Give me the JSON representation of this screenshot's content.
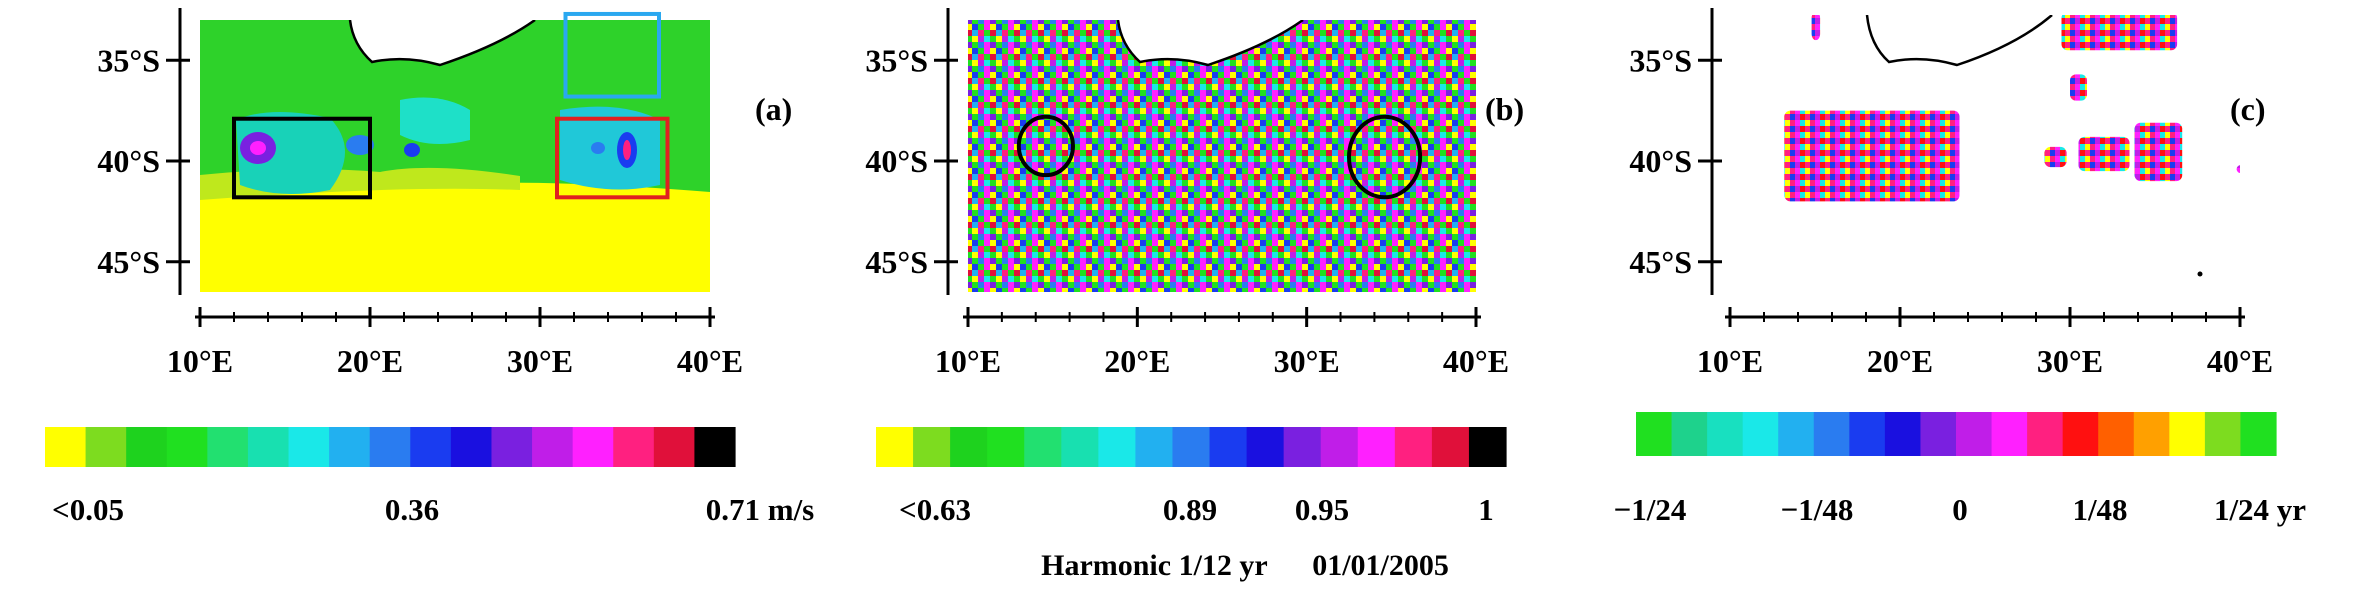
{
  "chart_data": [
    {
      "type": "heatmap",
      "panel_label": "(a)",
      "x_ticks": [
        "10°E",
        "20°E",
        "30°E",
        "40°E"
      ],
      "y_ticks": [
        "35°S",
        "40°S",
        "45°S"
      ],
      "xlim": [
        10,
        40
      ],
      "ylim": [
        -46.5,
        -33
      ],
      "boxes": [
        {
          "name": "black",
          "color": "#000000",
          "lon": [
            12,
            20
          ],
          "lat": [
            -37.9,
            -41.8
          ]
        },
        {
          "name": "blue",
          "color": "#2aa8f0",
          "lon": [
            31.5,
            37
          ],
          "lat": [
            -32.7,
            -36.8
          ]
        },
        {
          "name": "red",
          "color": "#e02020",
          "lon": [
            31,
            37.5
          ],
          "lat": [
            -37.9,
            -41.8
          ]
        }
      ],
      "colorbar": {
        "colors": [
          "#ffff00",
          "#7ddc1f",
          "#1ed21e",
          "#20e020",
          "#22e070",
          "#18e0b0",
          "#1ae8e8",
          "#22b0f0",
          "#2a7cf0",
          "#1a3cf0",
          "#1a10e0",
          "#7a20e0",
          "#c01ee8",
          "#ff20ff",
          "#ff2080",
          "#e0103a",
          "#000000"
        ],
        "tick_labels": [
          "<0.05",
          "0.36",
          "0.71 m/s"
        ]
      }
    },
    {
      "type": "heatmap",
      "panel_label": "(b)",
      "x_ticks": [
        "10°E",
        "20°E",
        "30°E",
        "40°E"
      ],
      "y_ticks": [
        "35°S",
        "40°S",
        "45°S"
      ],
      "xlim": [
        10,
        40
      ],
      "ylim": [
        -46.5,
        -33
      ],
      "circles": [
        {
          "lon": [
            13,
            16.2
          ],
          "lat": [
            -37.8,
            -40.7
          ]
        },
        {
          "lon": [
            32.5,
            36.7
          ],
          "lat": [
            -37.8,
            -41.8
          ]
        }
      ],
      "colorbar": {
        "colors": [
          "#ffff00",
          "#7ddc1f",
          "#1ed21e",
          "#20e020",
          "#22e070",
          "#18e0b0",
          "#1ae8e8",
          "#22b0f0",
          "#2a7cf0",
          "#1a3cf0",
          "#1a10e0",
          "#7a20e0",
          "#c01ee8",
          "#ff20ff",
          "#ff2080",
          "#e0103a",
          "#000000"
        ],
        "tick_labels": [
          "<0.63",
          "0.89",
          "0.95",
          "1"
        ]
      },
      "caption": "Harmonic 1/12 yr      01/01/2005"
    },
    {
      "type": "scatter",
      "panel_label": "(c)",
      "x_ticks": [
        "10°E",
        "20°E",
        "30°E",
        "40°E"
      ],
      "y_ticks": [
        "35°S",
        "40°S",
        "45°S"
      ],
      "xlim": [
        10,
        40
      ],
      "ylim": [
        -46.5,
        -33
      ],
      "clusters": [
        {
          "lon": [
            13.2,
            23.5
          ],
          "lat": [
            -37.5,
            -42.0
          ]
        },
        {
          "lon": [
            28.5,
            29.8
          ],
          "lat": [
            -39.3,
            -40.3
          ]
        },
        {
          "lon": [
            30.5,
            33.5
          ],
          "lat": [
            -38.8,
            -40.5
          ]
        },
        {
          "lon": [
            33.8,
            36.6
          ],
          "lat": [
            -38.1,
            -41.0
          ]
        },
        {
          "lon": [
            29.5,
            36.3
          ],
          "lat": [
            -32.6,
            -34.5
          ]
        },
        {
          "lon": [
            30.0,
            31.0
          ],
          "lat": [
            -35.7,
            -37.0
          ]
        },
        {
          "lon": [
            14.8,
            15.3
          ],
          "lat": [
            -32.6,
            -34.0
          ]
        },
        {
          "lon": [
            39.8,
            40.3
          ],
          "lat": [
            -40.2,
            -40.6
          ]
        }
      ],
      "colorbar": {
        "colors": [
          "#20e020",
          "#1ed28c",
          "#18e0c0",
          "#1ae8e8",
          "#22b0f0",
          "#2a7cf0",
          "#1a3cf0",
          "#1a10e0",
          "#7a20e0",
          "#c01ee8",
          "#ff20ff",
          "#ff2080",
          "#ff1010",
          "#ff6000",
          "#ffa000",
          "#ffff00",
          "#7ddc1f",
          "#20e020"
        ],
        "tick_labels": [
          "−1/24",
          "−1/48",
          "0",
          "1/48",
          "1/24 yr"
        ]
      }
    }
  ]
}
